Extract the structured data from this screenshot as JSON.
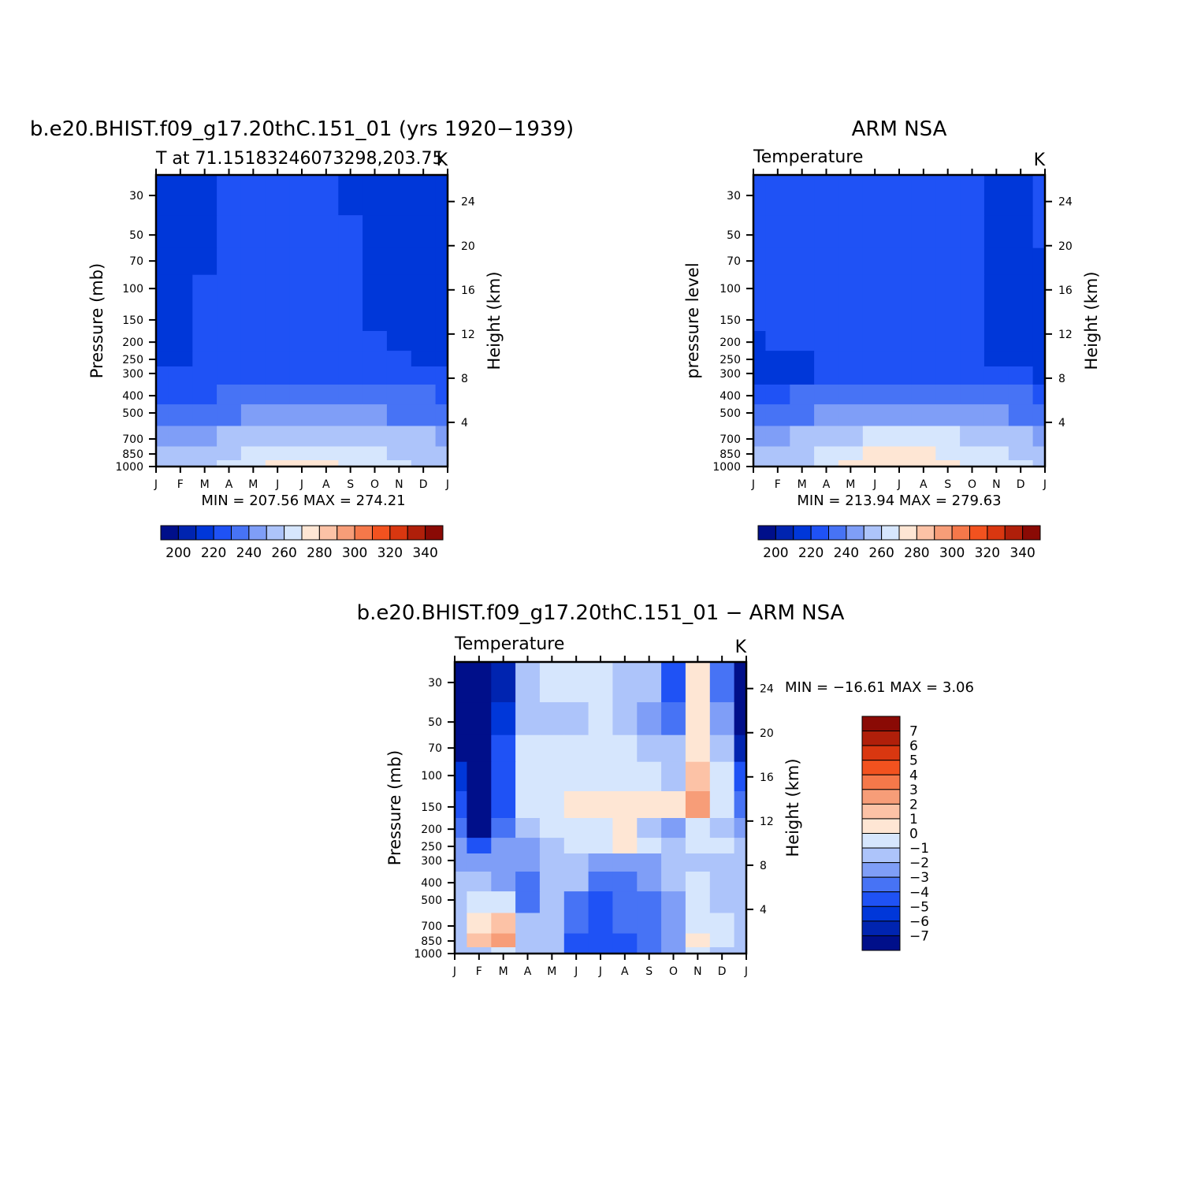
{
  "palette_abs": [
    "#000f8a",
    "#0024b0",
    "#0037d9",
    "#1f52f5",
    "#4773f5",
    "#7f9ef7",
    "#adc4fa",
    "#d6e6fd",
    "#fee6d4",
    "#fcc2a6",
    "#f79d78",
    "#f5784a",
    "#f2521f",
    "#d93710",
    "#b01f0a",
    "#8a0a05"
  ],
  "palette_diff": [
    "#000f8a",
    "#0024b0",
    "#0037d9",
    "#1f52f5",
    "#4773f5",
    "#7f9ef7",
    "#adc4fa",
    "#d6e6fd",
    "#fee6d4",
    "#fcc2a6",
    "#f79d78",
    "#f5784a",
    "#f2521f",
    "#d93710",
    "#b01f0a",
    "#8a0a05"
  ],
  "chart_data": [
    {
      "type": "heatmap",
      "id": "model",
      "title": "b.e20.BHIST.f09_g17.20thC.151_01 (yrs 1920−1939)",
      "subtitle": "T at 71.15183246073298,203.75",
      "units": "K",
      "ylabel": "Pressure  (mb)",
      "ylabel_right": "Height  (km)",
      "x_ticks": [
        "J",
        "F",
        "M",
        "A",
        "M",
        "J",
        "J",
        "A",
        "S",
        "O",
        "N",
        "D",
        "J"
      ],
      "y_ticks": [
        "30",
        "50",
        "70",
        "100",
        "150",
        "200",
        "250",
        "300",
        "400",
        "500",
        "700",
        "850",
        "1000"
      ],
      "y_right_ticks": [
        "4",
        "8",
        "12",
        "16",
        "20",
        "24"
      ],
      "y_scale": "log",
      "stats": "MIN = 207.56  MAX = 274.21",
      "levels": [
        200,
        210,
        220,
        230,
        240,
        250,
        260,
        270,
        280,
        290,
        300,
        310,
        320,
        330,
        340
      ],
      "colorbar_labels": [
        "200",
        "220",
        "240",
        "260",
        "280",
        "300",
        "320",
        "340"
      ],
      "colorbar_orientation": "horizontal",
      "pressure_levels": [
        30,
        50,
        70,
        100,
        150,
        200,
        250,
        300,
        400,
        500,
        700,
        850,
        1000
      ],
      "months": [
        "J",
        "F",
        "M",
        "A",
        "M",
        "J",
        "J",
        "A",
        "S",
        "O",
        "N",
        "D",
        "J"
      ],
      "values": [
        [
          211,
          212,
          217,
          222,
          222,
          222,
          222,
          222,
          217,
          217,
          216,
          214,
          211
        ],
        [
          212,
          214,
          218,
          222,
          222,
          222,
          222,
          222,
          220,
          218,
          217,
          215,
          212
        ],
        [
          216,
          218,
          219,
          222,
          222,
          222,
          222,
          222,
          221,
          219,
          218,
          217,
          216
        ],
        [
          218,
          219,
          220,
          222,
          223,
          223,
          223,
          223,
          222,
          219,
          218,
          218,
          218
        ],
        [
          218,
          219,
          220,
          222,
          223,
          223,
          223,
          223,
          223,
          219,
          218,
          218,
          218
        ],
        [
          218,
          219,
          221,
          223,
          223,
          224,
          224,
          224,
          223,
          220,
          218,
          218,
          218
        ],
        [
          219,
          219,
          221,
          224,
          225,
          225,
          225,
          225,
          224,
          222,
          220,
          219,
          219
        ],
        [
          221,
          222,
          222,
          226,
          227,
          227,
          227,
          227,
          226,
          224,
          223,
          222,
          221
        ],
        [
          229,
          229,
          229,
          231,
          232,
          234,
          235,
          234,
          233,
          232,
          231,
          231,
          229
        ],
        [
          236,
          236,
          237,
          239,
          241,
          243,
          244,
          243,
          242,
          240,
          239,
          237,
          236
        ],
        [
          248,
          248,
          249,
          252,
          255,
          258,
          259,
          258,
          256,
          253,
          251,
          250,
          248
        ],
        [
          253,
          253,
          254,
          258,
          263,
          267,
          268,
          267,
          264,
          260,
          257,
          255,
          253
        ],
        [
          256,
          256,
          257,
          262,
          268,
          272,
          273,
          272,
          268,
          264,
          260,
          258,
          256
        ]
      ]
    },
    {
      "type": "heatmap",
      "id": "obs",
      "title": "ARM NSA",
      "subtitle": "Temperature",
      "units": "K",
      "ylabel": "pressure level",
      "ylabel_right": "Height  (km)",
      "x_ticks": [
        "J",
        "F",
        "M",
        "A",
        "M",
        "J",
        "J",
        "A",
        "S",
        "O",
        "N",
        "D",
        "J"
      ],
      "y_ticks": [
        "30",
        "50",
        "70",
        "100",
        "150",
        "200",
        "250",
        "300",
        "400",
        "500",
        "700",
        "850",
        "1000"
      ],
      "y_right_ticks": [
        "4",
        "8",
        "12",
        "16",
        "20",
        "24"
      ],
      "y_scale": "log",
      "stats": "MIN = 213.94  MAX = 279.63",
      "levels": [
        200,
        210,
        220,
        230,
        240,
        250,
        260,
        270,
        280,
        290,
        300,
        310,
        320,
        330,
        340
      ],
      "colorbar_labels": [
        "200",
        "220",
        "240",
        "260",
        "280",
        "300",
        "320",
        "340"
      ],
      "colorbar_orientation": "horizontal",
      "pressure_levels": [
        30,
        50,
        70,
        100,
        150,
        200,
        250,
        300,
        400,
        500,
        700,
        850,
        1000
      ],
      "months": [
        "J",
        "F",
        "M",
        "A",
        "M",
        "J",
        "J",
        "A",
        "S",
        "O",
        "N",
        "D",
        "J"
      ],
      "values": [
        [
          224,
          224,
          224,
          224,
          224,
          224,
          226,
          224,
          224,
          222,
          218,
          218,
          224
        ],
        [
          224,
          224,
          224,
          224,
          224,
          224,
          225,
          224,
          224,
          222,
          218,
          218,
          222
        ],
        [
          224,
          224,
          224,
          224,
          224,
          224,
          225,
          224,
          224,
          223,
          218,
          218,
          219
        ],
        [
          224,
          224,
          224,
          224,
          224,
          224,
          224,
          224,
          224,
          224,
          218,
          218,
          219
        ],
        [
          223,
          224,
          224,
          224,
          224,
          224,
          224,
          224,
          224,
          224,
          218,
          218,
          219
        ],
        [
          219,
          220,
          222,
          224,
          224,
          224,
          224,
          224,
          224,
          224,
          219,
          218,
          219
        ],
        [
          218,
          218,
          219,
          223,
          224,
          224,
          224,
          224,
          224,
          223,
          219,
          218,
          219
        ],
        [
          219,
          218,
          219,
          224,
          226,
          227,
          227,
          227,
          226,
          224,
          221,
          220,
          219
        ],
        [
          229,
          229,
          230,
          232,
          234,
          236,
          237,
          236,
          235,
          233,
          232,
          231,
          229
        ],
        [
          237,
          237,
          238,
          240,
          243,
          246,
          247,
          246,
          245,
          243,
          241,
          239,
          237
        ],
        [
          249,
          249,
          250,
          254,
          258,
          262,
          263,
          262,
          260,
          256,
          253,
          251,
          249
        ],
        [
          254,
          254,
          256,
          261,
          267,
          271,
          272,
          271,
          268,
          264,
          260,
          257,
          254
        ],
        [
          257,
          257,
          259,
          264,
          271,
          276,
          277,
          276,
          273,
          268,
          263,
          260,
          257
        ]
      ]
    },
    {
      "type": "heatmap",
      "id": "diff",
      "title": "b.e20.BHIST.f09_g17.20thC.151_01  −  ARM NSA",
      "subtitle": "Temperature",
      "units": "K",
      "ylabel": "Pressure  (mb)",
      "ylabel_right": "Height  (km)",
      "x_ticks": [
        "J",
        "F",
        "M",
        "A",
        "M",
        "J",
        "J",
        "A",
        "S",
        "O",
        "N",
        "D",
        "J"
      ],
      "y_ticks": [
        "30",
        "50",
        "70",
        "100",
        "150",
        "200",
        "250",
        "300",
        "400",
        "500",
        "700",
        "850",
        "1000"
      ],
      "y_right_ticks": [
        "4",
        "8",
        "12",
        "16",
        "20",
        "24"
      ],
      "y_scale": "log",
      "stats": "MIN = −16.61  MAX =     3.06",
      "levels": [
        -7,
        -6,
        -5,
        -4,
        -3,
        -2,
        -1,
        0,
        1,
        2,
        3,
        4,
        5,
        6,
        7
      ],
      "colorbar_labels": [
        "7",
        "6",
        "5",
        "4",
        "3",
        "2",
        "1",
        "0",
        "−1",
        "−2",
        "−3",
        "−4",
        "−5",
        "−6",
        "−7"
      ],
      "colorbar_orientation": "vertical",
      "pressure_levels": [
        30,
        50,
        70,
        100,
        150,
        200,
        250,
        300,
        400,
        500,
        700,
        850,
        1000
      ],
      "months": [
        "J",
        "F",
        "M",
        "A",
        "M",
        "J",
        "J",
        "A",
        "S",
        "O",
        "N",
        "D",
        "J"
      ],
      "values": [
        [
          -13,
          -12,
          -7,
          -2,
          -1,
          -0.5,
          -0.3,
          -2,
          -2,
          -5,
          0.5,
          -4,
          -13
        ],
        [
          -12,
          -11,
          -6,
          -1.5,
          -1.5,
          -1.5,
          -1,
          -1.5,
          -2.5,
          -4,
          0.7,
          -3,
          -10
        ],
        [
          -9,
          -8,
          -5,
          -1,
          -1,
          -0.8,
          -0.5,
          -0.6,
          -1.5,
          -2,
          0.8,
          -2,
          -7
        ],
        [
          -6,
          -8,
          -5,
          -0.8,
          -0.6,
          -0.5,
          -0.3,
          -0.4,
          -0.8,
          -1.5,
          1.2,
          -1,
          -5
        ],
        [
          -5,
          -10,
          -5,
          -0.5,
          -0.3,
          0.5,
          0.8,
          0.6,
          0.3,
          0.2,
          2.5,
          -0.5,
          -4
        ],
        [
          -4,
          -10,
          -4,
          -1.5,
          -0.8,
          -0.5,
          -0.6,
          0.5,
          -2,
          -2.5,
          -1,
          -1.5,
          -3
        ],
        [
          -3,
          -5,
          -3,
          -3,
          -1.5,
          -0.5,
          -0.8,
          0.3,
          -1,
          -1.5,
          -0.8,
          -0.8,
          -2
        ],
        [
          -3,
          -3,
          -3,
          -3,
          -2,
          -1.5,
          -3,
          -3,
          -2.5,
          -2,
          -1.5,
          -1.5,
          -2
        ],
        [
          -2,
          -2,
          -2.5,
          -4,
          -2,
          -2,
          -4,
          -3.5,
          -3,
          -2,
          -1,
          -1.5,
          -2
        ],
        [
          -1.5,
          -1,
          -1,
          -3.5,
          -2,
          -4,
          -4.5,
          -4,
          -4,
          -2.5,
          -0.8,
          -1.5,
          -1.5
        ],
        [
          -1.5,
          0.5,
          1.5,
          -2,
          -2,
          -4,
          -4.5,
          -4,
          -4,
          -2.5,
          -0.8,
          -1,
          -1.5
        ],
        [
          -2,
          1.5,
          2,
          -2,
          -2,
          -4.5,
          -5,
          -5,
          -4,
          -2.5,
          0.5,
          -1,
          -1.5
        ],
        [
          -2,
          -1.5,
          -1,
          -2,
          -2,
          -4.5,
          -5,
          -5,
          -4,
          -3,
          -1,
          -1.5,
          -2
        ]
      ]
    }
  ]
}
